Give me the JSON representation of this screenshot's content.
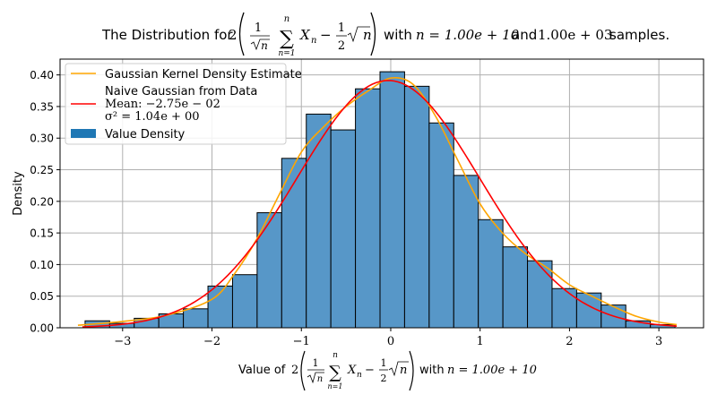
{
  "chart_data": {
    "type": "bar",
    "title": {
      "prefix": "The Distribution for",
      "two": "2",
      "frac_num": "1",
      "sqrt_n": "n",
      "sum_top": "n",
      "sum_bottom": "n=1",
      "x_term": "X",
      "x_sub": "n",
      "minus": "−",
      "frac2_num": "1",
      "frac2_den": "2",
      "with_text": "with",
      "n_eq": "n = 1.00e + 10",
      "and_text": "and",
      "samples_val": "1.00e + 03",
      "suffix": "samples."
    },
    "xlabel": {
      "prefix": "Value of",
      "two": "2",
      "frac_num": "1",
      "sqrt_n": "n",
      "sum_top": "n",
      "sum_bottom": "n=1",
      "x_term": "X",
      "x_sub": "n",
      "minus": "−",
      "frac2_num": "1",
      "frac2_den": "2",
      "with_text": "with",
      "n_eq": "n = 1.00e + 10"
    },
    "ylabel": "Density",
    "xlim": [
      -3.7,
      3.5
    ],
    "ylim": [
      0.0,
      0.425
    ],
    "xticks": [
      -3,
      -2,
      -1,
      0,
      1,
      2,
      3
    ],
    "xtick_labels": [
      "−3",
      "−2",
      "−1",
      "0",
      "1",
      "2",
      "3"
    ],
    "yticks": [
      0.0,
      0.05,
      0.1,
      0.15,
      0.2,
      0.25,
      0.3,
      0.35,
      0.4
    ],
    "ytick_labels": [
      "0.00",
      "0.05",
      "0.10",
      "0.15",
      "0.20",
      "0.25",
      "0.30",
      "0.35",
      "0.40"
    ],
    "grid": true,
    "legend_position": "top-left",
    "legend": {
      "kde_label": "Gaussian Kernel Density Estimate",
      "normal_label_1": "Naive Gaussian from Data",
      "normal_label_2": "Mean: −2.75e − 02",
      "normal_label_3": "σ² = 1.04e + 00",
      "hist_label": "Value Density"
    },
    "histogram": {
      "bin_edges": [
        -3.42,
        -3.145,
        -2.87,
        -2.595,
        -2.32,
        -2.045,
        -1.77,
        -1.495,
        -1.22,
        -0.945,
        -0.67,
        -0.395,
        -0.12,
        0.155,
        0.43,
        0.705,
        0.98,
        1.255,
        1.53,
        1.805,
        2.08,
        2.355,
        2.63,
        2.905,
        3.18
      ],
      "densities": [
        0.011,
        0.007,
        0.015,
        0.022,
        0.03,
        0.066,
        0.084,
        0.182,
        0.268,
        0.338,
        0.313,
        0.378,
        0.405,
        0.382,
        0.324,
        0.241,
        0.171,
        0.128,
        0.106,
        0.062,
        0.055,
        0.036,
        0.011,
        0.005
      ]
    },
    "series": [
      {
        "name": "Gaussian Kernel Density Estimate",
        "x": [
          -3.5,
          -3.0,
          -2.5,
          -2.0,
          -1.75,
          -1.5,
          -1.25,
          -1.0,
          -0.75,
          -0.5,
          -0.25,
          0.0,
          0.25,
          0.5,
          0.75,
          1.0,
          1.25,
          1.5,
          1.75,
          2.0,
          2.25,
          2.5,
          2.75,
          3.0,
          3.2
        ],
        "y": [
          0.004,
          0.01,
          0.02,
          0.045,
          0.085,
          0.14,
          0.21,
          0.278,
          0.318,
          0.35,
          0.375,
          0.395,
          0.385,
          0.335,
          0.265,
          0.196,
          0.15,
          0.118,
          0.095,
          0.068,
          0.05,
          0.033,
          0.018,
          0.009,
          0.005
        ]
      },
      {
        "name": "Naive Gaussian from Data",
        "mean": -0.0275,
        "variance": 1.04,
        "x_range": [
          -3.45,
          3.2
        ]
      }
    ],
    "colors": {
      "bar_fill": "#5797c8",
      "bar_edge": "#000000",
      "kde": "#ffa500",
      "normal": "#ff0000",
      "grid": "#b0b0b0",
      "legend_patch": "#1f77b4"
    }
  }
}
